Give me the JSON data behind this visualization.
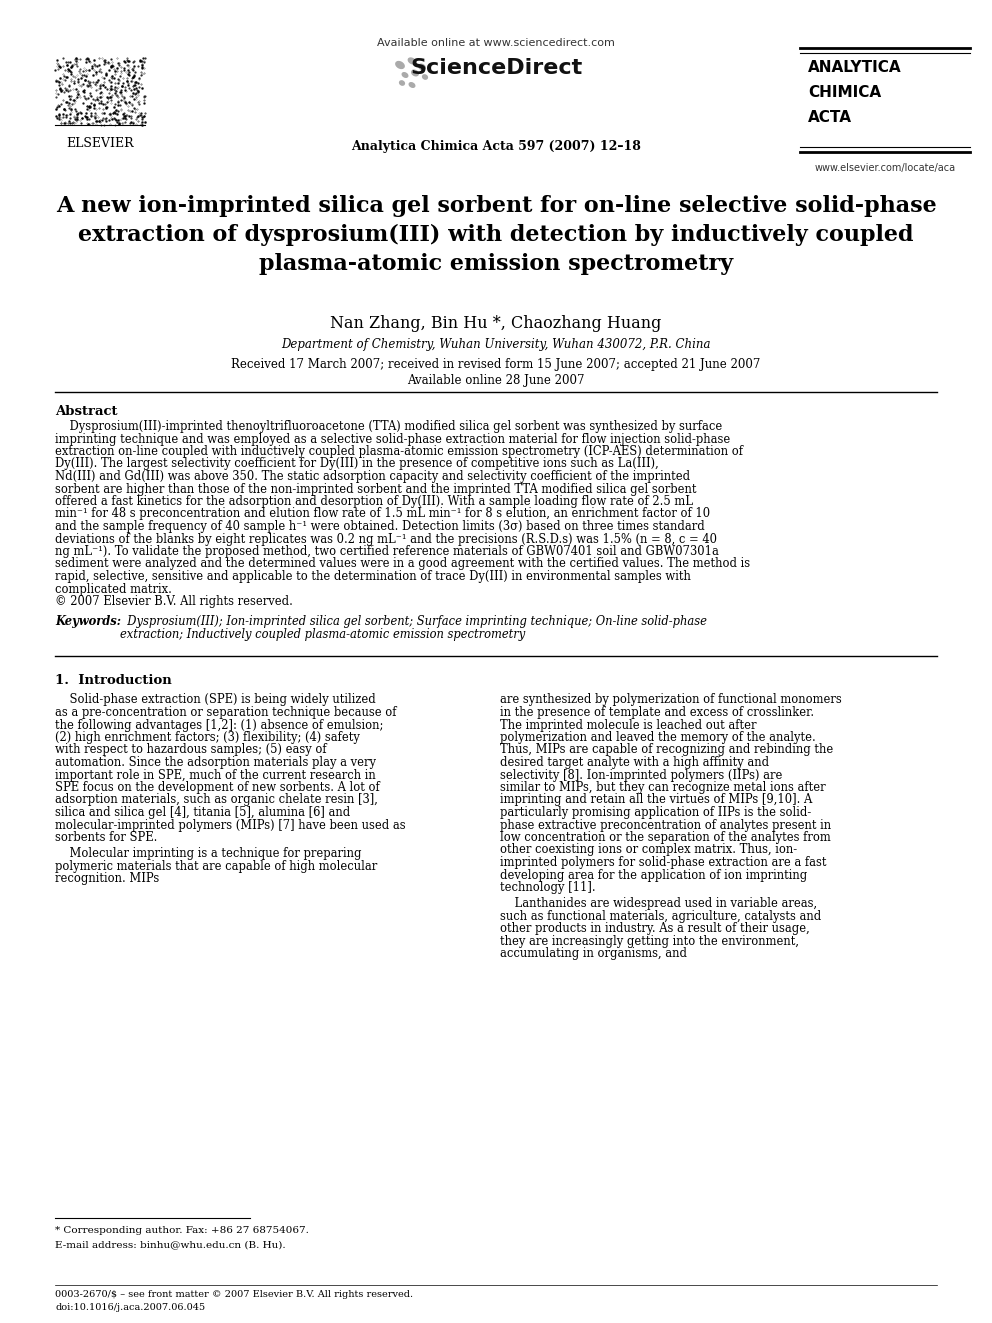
{
  "bg_color": "#ffffff",
  "header": {
    "available_online": "Available online at www.sciencedirect.com",
    "journal_name": "Analytica Chimica Acta 597 (2007) 12–18",
    "journal_box_lines": [
      "ANALYTICA",
      "CHIMICA",
      "ACTA"
    ],
    "website": "www.elsevier.com/locate/aca",
    "elsevier_text": "ELSEVIER"
  },
  "title": "A new ion-imprinted silica gel sorbent for on-line selective solid-phase\nextraction of dysprosium(III) with detection by inductively coupled\nplasma-atomic emission spectrometry",
  "authors": "Nan Zhang, Bin Hu *, Chaozhang Huang",
  "affiliation": "Department of Chemistry, Wuhan University, Wuhan 430072, P.R. China",
  "received": "Received 17 March 2007; received in revised form 15 June 2007; accepted 21 June 2007",
  "available": "Available online 28 June 2007",
  "abstract_title": "Abstract",
  "abstract_text": "    Dysprosium(III)-imprinted thenoyltrifluoroacetone (TTA) modified silica gel sorbent was synthesized by surface imprinting technique and was employed as a selective solid-phase extraction material for flow injection solid-phase extraction on-line coupled with inductively coupled plasma-atomic emission spectrometry (ICP-AES) determination of Dy(III). The largest selectivity coefficient for Dy(III) in the presence of competitive ions such as La(III), Nd(III) and Gd(III) was above 350. The static adsorption capacity and selectivity coefficient of the imprinted sorbent are higher than those of the non-imprinted sorbent and the imprinted TTA modified silica gel sorbent offered a fast kinetics for the adsorption and desorption of Dy(III). With a sample loading flow rate of 2.5 mL min⁻¹ for 48 s preconcentration and elution flow rate of 1.5 mL min⁻¹ for 8 s elution, an enrichment factor of 10 and the sample frequency of 40 sample h⁻¹ were obtained. Detection limits (3σ) based on three times standard deviations of the blanks by eight replicates was 0.2 ng mL⁻¹ and the precisions (R.S.D.s) was 1.5% (n = 8, c = 40 ng mL⁻¹). To validate the proposed method, two certified reference materials of GBW07401 soil and GBW07301a sediment were analyzed and the determined values were in a good agreement with the certified values. The method is rapid, selective, sensitive and applicable to the determination of trace Dy(III) in environmental samples with complicated matrix.\n© 2007 Elsevier B.V. All rights reserved.",
  "keywords_label": "Keywords:",
  "keywords_text": "  Dysprosium(III); Ion-imprinted silica gel sorbent; Surface imprinting technique; On-line solid-phase extraction; Inductively coupled plasma-atomic emission spectrometry",
  "section1_title": "1.  Introduction",
  "section1_left_para1": "    Solid-phase extraction (SPE) is being widely utilized as a pre-concentration or separation technique because of the following advantages [1,2]: (1) absence of emulsion; (2) high enrichment factors; (3) flexibility; (4) safety with respect to hazardous samples; (5) easy of automation. Since the adsorption materials play a very important role in SPE, much of the current research in SPE focus on the development of new sorbents. A lot of adsorption materials, such as organic chelate resin [3], silica and silica gel [4], titania [5], alumina [6] and molecular-imprinted polymers (MIPs) [7] have been used as sorbents for SPE.",
  "section1_left_para2": "    Molecular imprinting is a technique for preparing polymeric materials that are capable of high molecular recognition. MIPs",
  "section1_right_para1": "are synthesized by polymerization of functional monomers in the presence of template and excess of crosslinker. The imprinted molecule is leached out after polymerization and leaved the memory of the analyte. Thus, MIPs are capable of recognizing and rebinding the desired target analyte with a high affinity and selectivity [8]. Ion-imprinted polymers (IIPs) are similar to MIPs, but they can recognize metal ions after imprinting and retain all the virtues of MIPs [9,10]. A particularly promising application of IIPs is the solid-phase extractive preconcentration of analytes present in low concentration or the separation of the analytes from other coexisting ions or complex matrix. Thus, ion-imprinted polymers for solid-phase extraction are a fast developing area for the application of ion imprinting technology [11].",
  "section1_right_para2": "    Lanthanides are widespread used in variable areas, such as functional materials, agriculture, catalysts and other products in industry. As a result of their usage, they are increasingly getting into the environment, accumulating in organisms, and",
  "footnote_line1": "* Corresponding author. Fax: +86 27 68754067.",
  "footnote_line2": "E-mail address: binhu@whu.edu.cn (B. Hu).",
  "footer_left": "0003-2670/$ – see front matter © 2007 Elsevier B.V. All rights reserved.",
  "footer_doi": "doi:10.1016/j.aca.2007.06.045"
}
